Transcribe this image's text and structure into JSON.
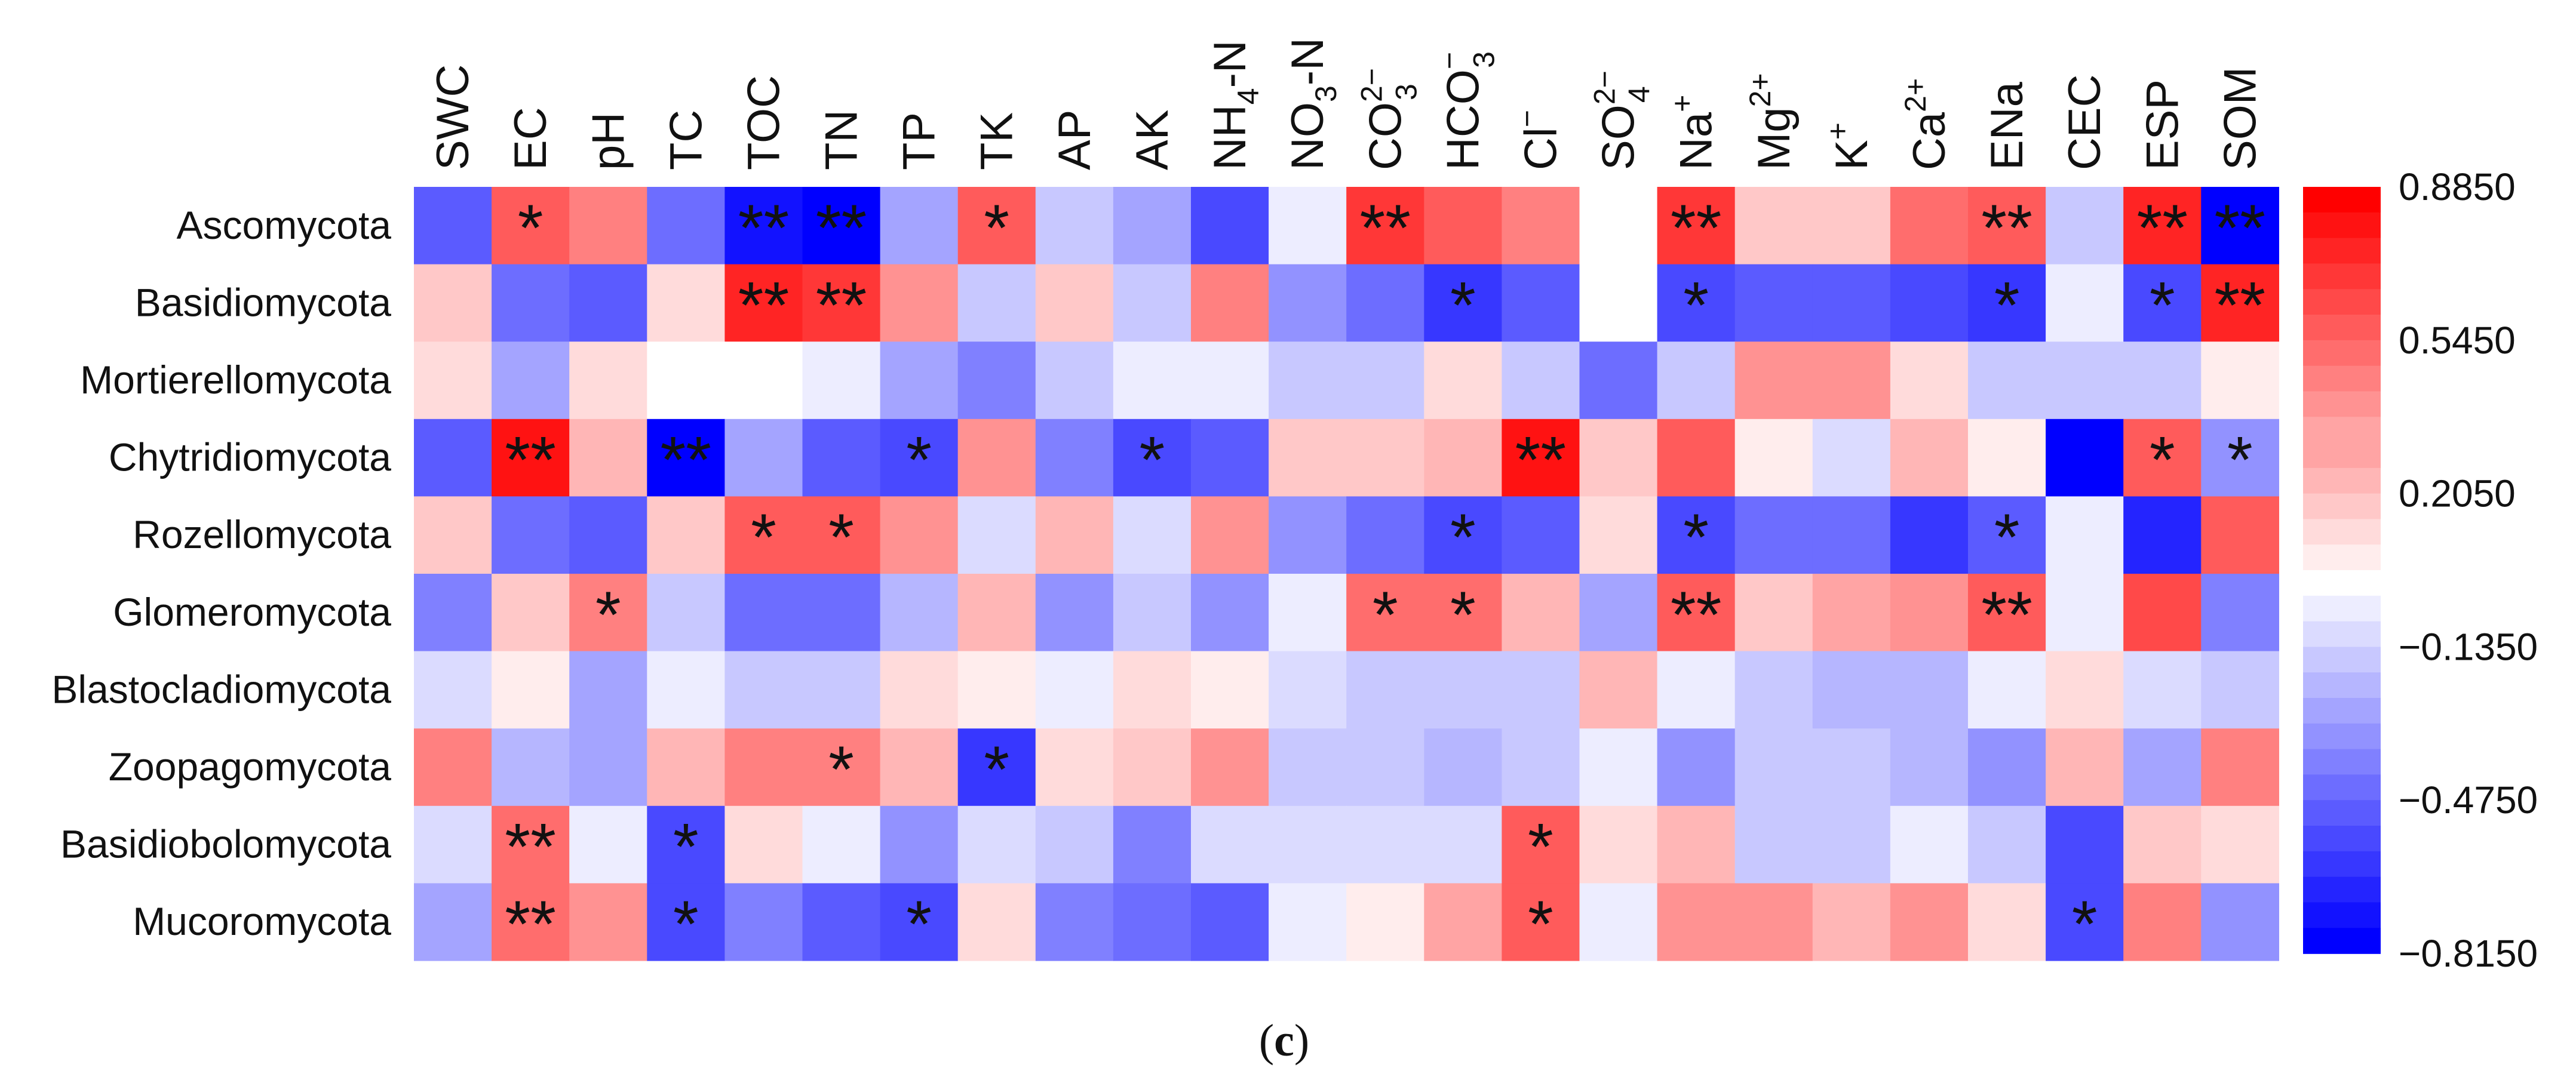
{
  "chart_data": {
    "type": "heatmap",
    "columns": [
      {
        "base": "SWC",
        "sup": "",
        "sub": ""
      },
      {
        "base": "EC",
        "sup": "",
        "sub": ""
      },
      {
        "base": "pH",
        "sup": "",
        "sub": ""
      },
      {
        "base": "TC",
        "sup": "",
        "sub": ""
      },
      {
        "base": "TOC",
        "sup": "",
        "sub": ""
      },
      {
        "base": "TN",
        "sup": "",
        "sub": ""
      },
      {
        "base": "TP",
        "sup": "",
        "sub": ""
      },
      {
        "base": "TK",
        "sup": "",
        "sub": ""
      },
      {
        "base": "AP",
        "sup": "",
        "sub": ""
      },
      {
        "base": "AK",
        "sup": "",
        "sub": ""
      },
      {
        "base": "NH",
        "sub": "4",
        "tail": "-N",
        "sup": ""
      },
      {
        "base": "NO",
        "sub": "3",
        "tail": "-N",
        "sup": ""
      },
      {
        "base": "CO",
        "sub": "3",
        "sup": "2−"
      },
      {
        "base": "HCO",
        "sub": "3",
        "sup": "−"
      },
      {
        "base": "Cl",
        "sup": "−",
        "sub": ""
      },
      {
        "base": "SO",
        "sub": "4",
        "sup": "2−"
      },
      {
        "base": "Na",
        "sup": "+",
        "sub": ""
      },
      {
        "base": "Mg",
        "sup": "2+",
        "sub": ""
      },
      {
        "base": "K",
        "sup": "+",
        "sub": ""
      },
      {
        "base": "Ca",
        "sup": "2+",
        "sub": ""
      },
      {
        "base": "ENa",
        "sup": "",
        "sub": ""
      },
      {
        "base": "CEC",
        "sup": "",
        "sub": ""
      },
      {
        "base": "ESP",
        "sup": "",
        "sub": ""
      },
      {
        "base": "SOM",
        "sup": "",
        "sub": ""
      }
    ],
    "rows": [
      "Ascomycota",
      "Basidiomycota",
      "Mortierellomycota",
      "Chytridiomycota",
      "Rozellomycota",
      "Glomeromycota",
      "Blastocladiomycota",
      "Zoopagomycota",
      "Basidiobolomycota",
      "Mucoromycota"
    ],
    "values": [
      [
        -0.5,
        0.58,
        0.42,
        -0.45,
        -0.78,
        -0.81,
        -0.3,
        0.6,
        -0.15,
        -0.3,
        -0.6,
        -0.05,
        0.68,
        0.55,
        0.45,
        0.03,
        0.7,
        0.22,
        0.22,
        0.5,
        0.6,
        -0.15,
        0.78,
        -0.81
      ],
      [
        0.18,
        -0.45,
        -0.55,
        0.1,
        0.75,
        0.7,
        0.35,
        -0.15,
        0.22,
        -0.15,
        0.45,
        -0.35,
        -0.45,
        -0.65,
        -0.5,
        0.03,
        -0.6,
        -0.5,
        -0.55,
        -0.6,
        -0.65,
        -0.03,
        -0.6,
        0.78
      ],
      [
        0.12,
        -0.3,
        0.1,
        0.02,
        0.02,
        -0.03,
        -0.3,
        -0.4,
        -0.2,
        -0.08,
        -0.08,
        -0.15,
        -0.15,
        0.1,
        -0.2,
        -0.45,
        -0.2,
        0.4,
        0.35,
        0.15,
        -0.15,
        -0.15,
        -0.15,
        0.05
      ],
      [
        -0.55,
        0.85,
        0.28,
        -0.81,
        -0.3,
        -0.5,
        -0.6,
        0.4,
        -0.4,
        -0.6,
        -0.55,
        0.2,
        0.2,
        0.25,
        0.85,
        0.18,
        0.6,
        0.04,
        -0.1,
        0.25,
        0.05,
        -0.81,
        0.58,
        -0.35
      ],
      [
        0.18,
        -0.45,
        -0.5,
        0.18,
        0.58,
        0.55,
        0.35,
        -0.1,
        0.28,
        -0.12,
        0.4,
        -0.35,
        -0.45,
        -0.6,
        -0.5,
        0.15,
        -0.6,
        -0.45,
        -0.45,
        -0.65,
        -0.55,
        -0.03,
        -0.7,
        0.58
      ],
      [
        -0.4,
        0.18,
        0.45,
        -0.2,
        -0.45,
        -0.45,
        -0.25,
        0.28,
        -0.35,
        -0.15,
        -0.35,
        -0.08,
        0.48,
        0.48,
        0.28,
        -0.3,
        0.55,
        0.22,
        0.3,
        0.4,
        0.55,
        -0.03,
        0.65,
        -0.4
      ],
      [
        -0.1,
        0.04,
        -0.3,
        -0.04,
        -0.15,
        -0.15,
        0.15,
        0.04,
        -0.05,
        0.12,
        0.04,
        -0.1,
        -0.15,
        -0.2,
        -0.15,
        0.28,
        -0.08,
        -0.2,
        -0.25,
        -0.25,
        -0.05,
        0.15,
        -0.1,
        -0.15
      ],
      [
        0.42,
        -0.25,
        -0.3,
        0.25,
        0.42,
        0.45,
        0.25,
        -0.65,
        0.12,
        0.22,
        0.4,
        -0.15,
        -0.15,
        -0.25,
        -0.15,
        -0.03,
        -0.35,
        -0.2,
        -0.2,
        -0.25,
        -0.35,
        0.25,
        -0.3,
        0.45
      ],
      [
        -0.1,
        0.48,
        -0.05,
        -0.6,
        0.15,
        -0.05,
        -0.35,
        -0.1,
        -0.15,
        -0.4,
        -0.1,
        -0.1,
        -0.1,
        -0.1,
        0.55,
        0.12,
        0.25,
        -0.15,
        -0.2,
        -0.05,
        -0.15,
        -0.6,
        0.22,
        0.15
      ],
      [
        -0.3,
        0.48,
        0.35,
        -0.6,
        -0.4,
        -0.55,
        -0.6,
        0.15,
        -0.4,
        -0.45,
        -0.55,
        -0.08,
        0.04,
        0.3,
        0.58,
        -0.05,
        0.35,
        0.35,
        0.28,
        0.35,
        0.15,
        -0.6,
        0.42,
        -0.35
      ]
    ],
    "significance": [
      [
        "",
        "*",
        "",
        "",
        "**",
        "**",
        "",
        "*",
        "",
        "",
        "",
        "",
        "**",
        "",
        "",
        "",
        "**",
        "",
        "",
        "",
        "**",
        "",
        "**",
        "**"
      ],
      [
        "",
        "",
        "",
        "",
        "**",
        "**",
        "",
        "",
        "",
        "",
        "",
        "",
        "",
        "*",
        "",
        "",
        "*",
        "",
        "",
        "",
        "*",
        "",
        "*",
        "**"
      ],
      [
        "",
        "",
        "",
        "",
        "",
        "",
        "",
        "",
        "",
        "",
        "",
        "",
        "",
        "",
        "",
        "",
        "",
        "",
        "",
        "",
        "",
        "",
        "",
        ""
      ],
      [
        "",
        "**",
        "",
        "**",
        "",
        "",
        "*",
        "",
        "",
        "*",
        "",
        "",
        "",
        "",
        "**",
        "",
        "",
        "",
        "",
        "",
        "",
        "",
        "*",
        "*"
      ],
      [
        "",
        "",
        "",
        "",
        "*",
        "*",
        "",
        "",
        "",
        "",
        "",
        "",
        "",
        "*",
        "",
        "",
        "*",
        "",
        "",
        "",
        "*",
        "",
        "",
        ""
      ],
      [
        "",
        "",
        "*",
        "",
        "",
        "",
        "",
        "",
        "",
        "",
        "",
        "",
        "*",
        "*",
        "",
        "",
        "**",
        "",
        "",
        "",
        "**",
        "",
        "",
        ""
      ],
      [
        "",
        "",
        "",
        "",
        "",
        "",
        "",
        "",
        "",
        "",
        "",
        "",
        "",
        "",
        "",
        "",
        "",
        "",
        "",
        "",
        "",
        "",
        "",
        ""
      ],
      [
        "",
        "",
        "",
        "",
        "",
        "*",
        "",
        "*",
        "",
        "",
        "",
        "",
        "",
        "",
        "",
        "",
        "",
        "",
        "",
        "",
        "",
        "",
        "",
        ""
      ],
      [
        "",
        "**",
        "",
        "*",
        "",
        "",
        "",
        "",
        "",
        "",
        "",
        "",
        "",
        "",
        "*",
        "",
        "",
        "",
        "",
        "",
        "",
        "",
        "",
        ""
      ],
      [
        "",
        "**",
        "",
        "*",
        "",
        "",
        "*",
        "",
        "",
        "",
        "",
        "",
        "",
        "",
        "*",
        "",
        "",
        "",
        "",
        "",
        "",
        "*",
        "",
        ""
      ]
    ],
    "colorbar": {
      "min": -0.815,
      "max": 0.885,
      "ticks": [
        "0.8850",
        "0.5450",
        "0.2050",
        "−0.1350",
        "−0.4750",
        "−0.8150"
      ],
      "colors": {
        "low": "#0000ff",
        "mid": "#ffffff",
        "high": "#ff0000"
      }
    }
  },
  "caption": {
    "open": "(",
    "letter": "c",
    "close": ")"
  }
}
